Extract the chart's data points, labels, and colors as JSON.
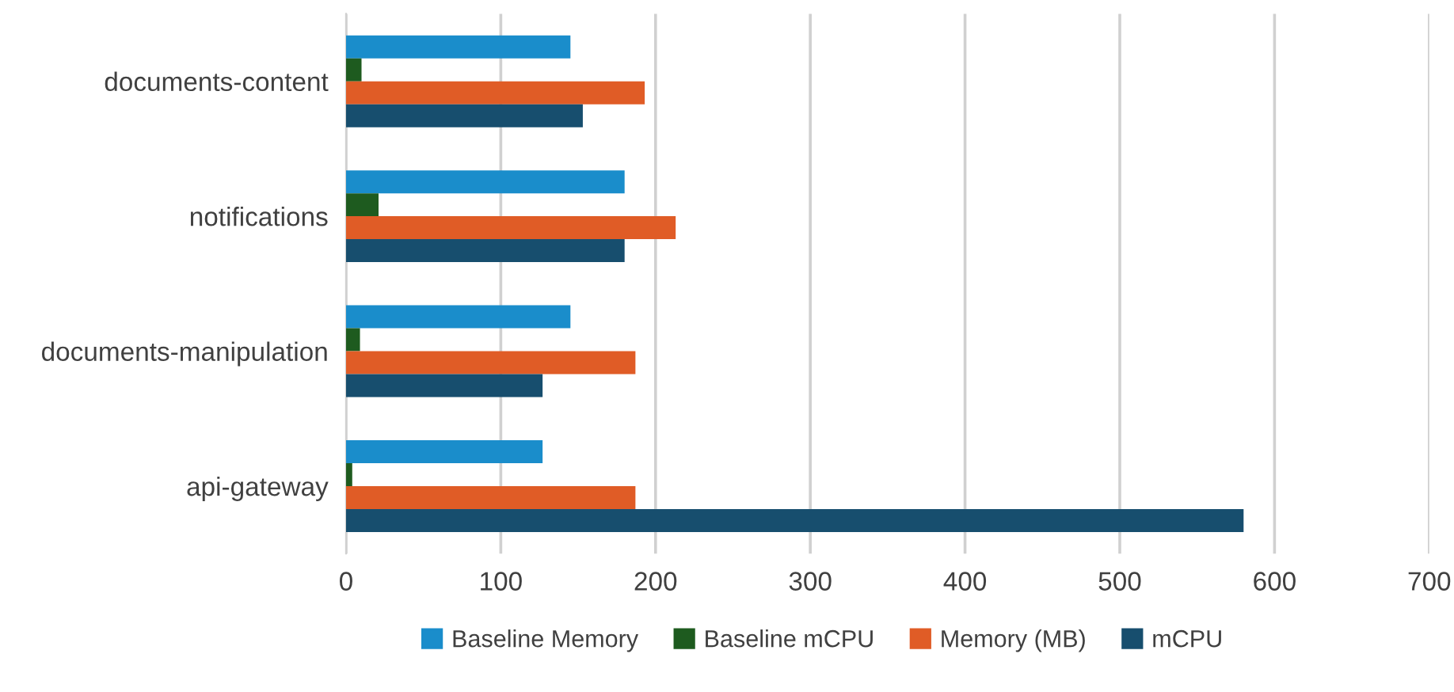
{
  "chart_data": {
    "type": "bar",
    "orientation": "horizontal",
    "categories": [
      "documents-content",
      "notifications",
      "documents-manipulation",
      "api-gateway"
    ],
    "series": [
      {
        "name": "Baseline Memory",
        "color": "#1a8dcb",
        "values": [
          145,
          180,
          145,
          127
        ]
      },
      {
        "name": "Baseline mCPU",
        "color": "#1e5b1f",
        "values": [
          10,
          21,
          9,
          4
        ]
      },
      {
        "name": "Memory (MB)",
        "color": "#e05c26",
        "values": [
          193,
          213,
          187,
          187
        ]
      },
      {
        "name": "mCPU",
        "color": "#174e6e",
        "values": [
          153,
          180,
          127,
          580
        ]
      }
    ],
    "xlim": [
      0,
      700
    ],
    "xticks": [
      0,
      100,
      200,
      300,
      400,
      500,
      600,
      700
    ],
    "grid": "x",
    "legend": "bottom"
  }
}
